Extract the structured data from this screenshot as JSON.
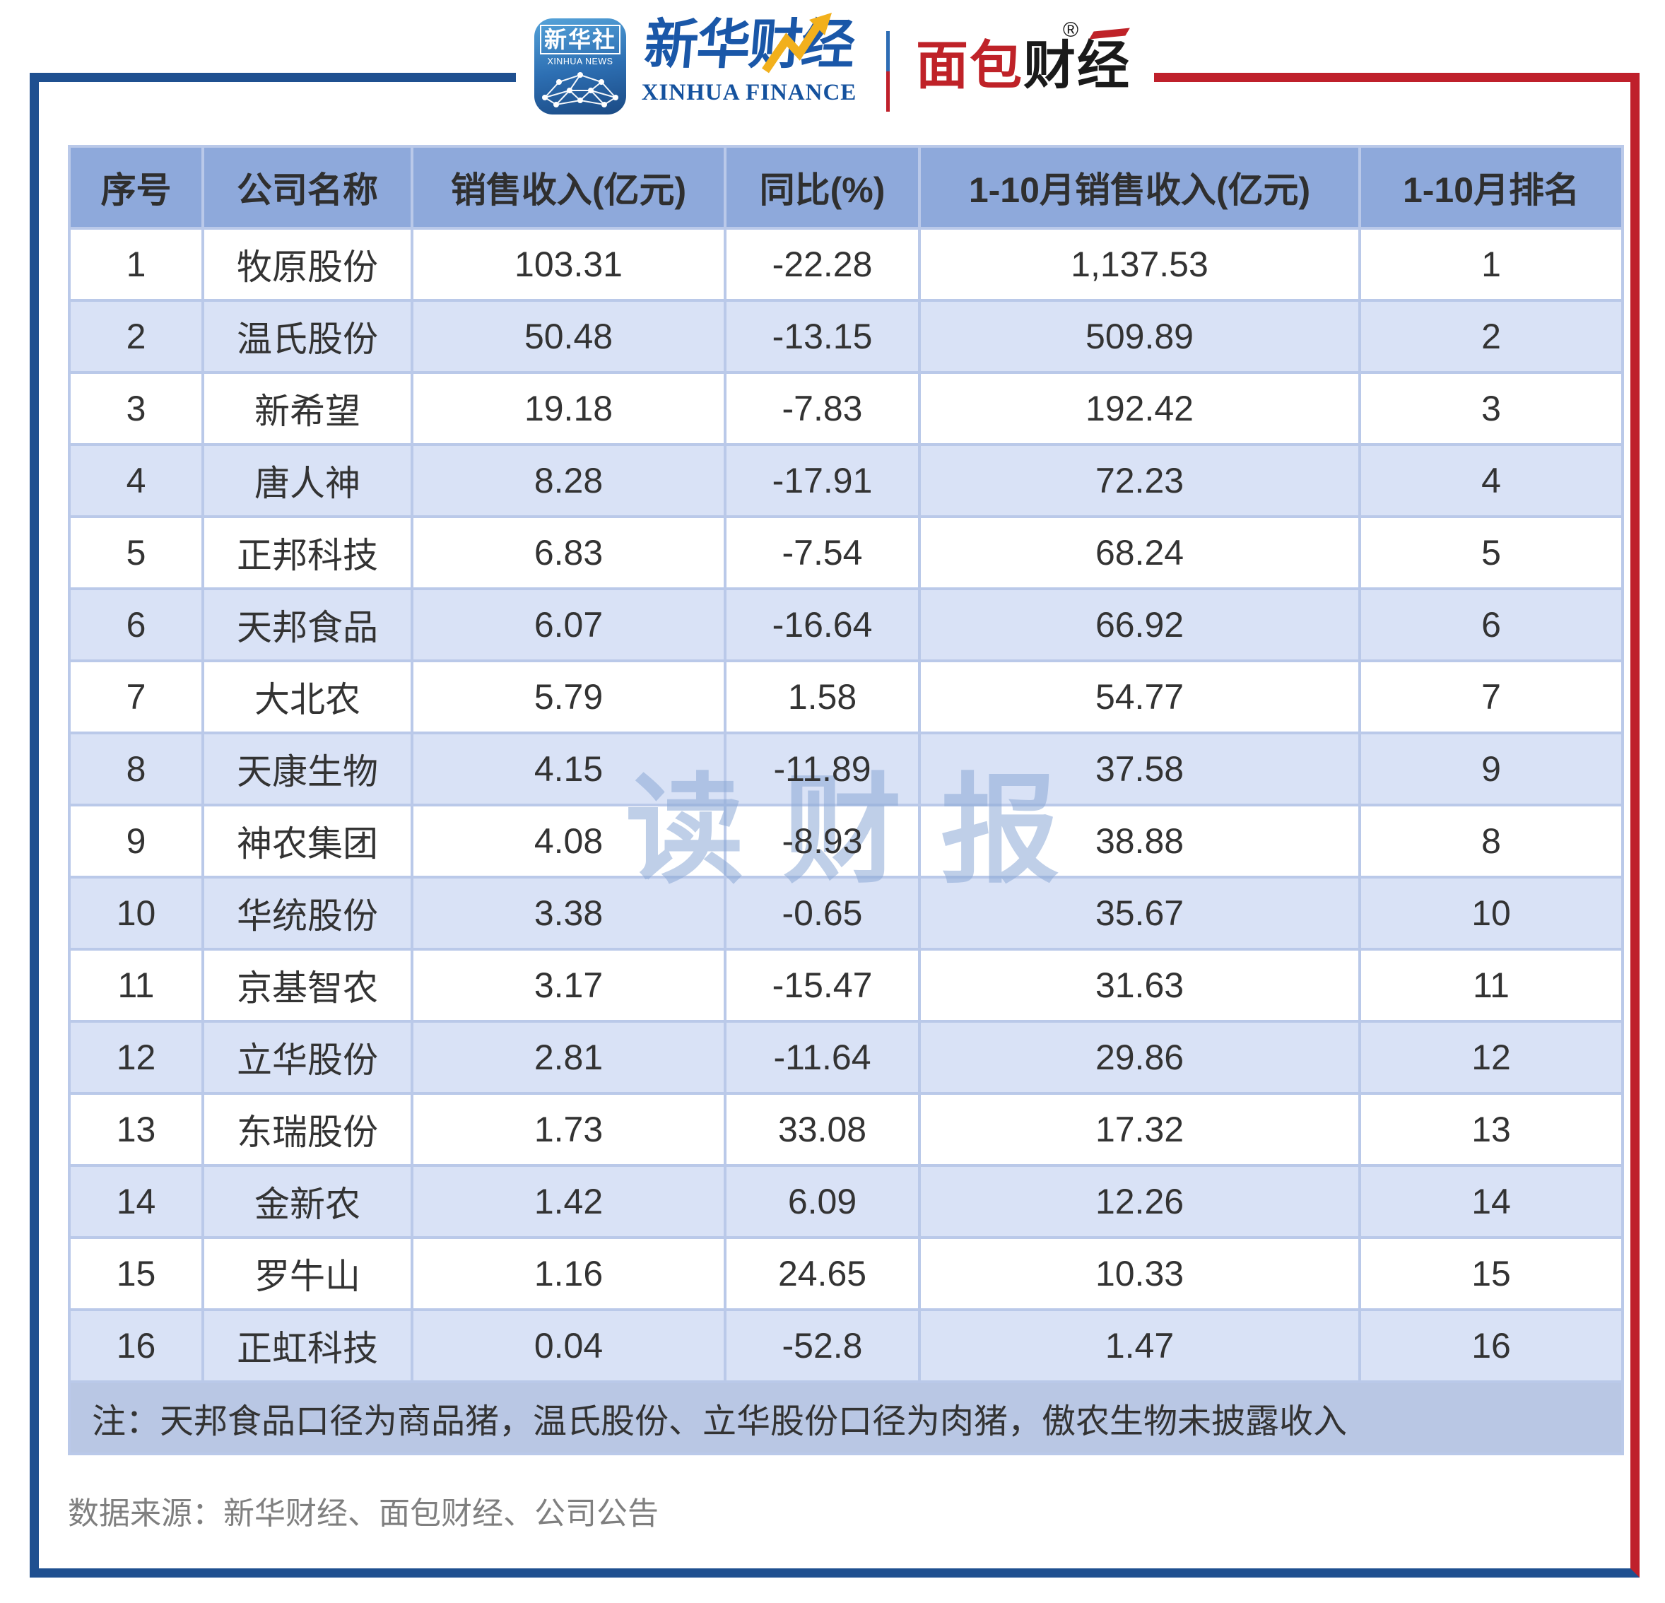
{
  "header": {
    "xinhua_news_icon": {
      "cn": "新华社",
      "en": "XINHUA NEWS"
    },
    "xinhua_finance": {
      "cn": "新华财经",
      "en": "XINHUA FINANCE"
    },
    "mianbao_finance": {
      "red": "面包",
      "black": "财经",
      "reg": "®"
    }
  },
  "chart_data": {
    "type": "table",
    "columns": [
      "序号",
      "公司名称",
      "销售收入(亿元)",
      "同比(%)",
      "1-10月销售收入(亿元)",
      "1-10月排名"
    ],
    "rows": [
      [
        "1",
        "牧原股份",
        "103.31",
        "-22.28",
        "1,137.53",
        "1"
      ],
      [
        "2",
        "温氏股份",
        "50.48",
        "-13.15",
        "509.89",
        "2"
      ],
      [
        "3",
        "新希望",
        "19.18",
        "-7.83",
        "192.42",
        "3"
      ],
      [
        "4",
        "唐人神",
        "8.28",
        "-17.91",
        "72.23",
        "4"
      ],
      [
        "5",
        "正邦科技",
        "6.83",
        "-7.54",
        "68.24",
        "5"
      ],
      [
        "6",
        "天邦食品",
        "6.07",
        "-16.64",
        "66.92",
        "6"
      ],
      [
        "7",
        "大北农",
        "5.79",
        "1.58",
        "54.77",
        "7"
      ],
      [
        "8",
        "天康生物",
        "4.15",
        "-11.89",
        "37.58",
        "9"
      ],
      [
        "9",
        "神农集团",
        "4.08",
        "-8.93",
        "38.88",
        "8"
      ],
      [
        "10",
        "华统股份",
        "3.38",
        "-0.65",
        "35.67",
        "10"
      ],
      [
        "11",
        "京基智农",
        "3.17",
        "-15.47",
        "31.63",
        "11"
      ],
      [
        "12",
        "立华股份",
        "2.81",
        "-11.64",
        "29.86",
        "12"
      ],
      [
        "13",
        "东瑞股份",
        "1.73",
        "33.08",
        "17.32",
        "13"
      ],
      [
        "14",
        "金新农",
        "1.42",
        "6.09",
        "12.26",
        "14"
      ],
      [
        "15",
        "罗牛山",
        "1.16",
        "24.65",
        "10.33",
        "15"
      ],
      [
        "16",
        "正虹科技",
        "0.04",
        "-52.8",
        "1.47",
        "16"
      ]
    ],
    "note": "注：天邦食品口径为商品猪，温氏股份、立华股份口径为肉猪，傲农生物未披露收入",
    "source": "数据来源：新华财经、面包财经、公司公告"
  },
  "watermark": {
    "text": "读财报"
  },
  "colors": {
    "frame_blue": "#1f5090",
    "frame_red": "#bf202b",
    "header_bg": "#8ea9db",
    "row_alt_bg": "#d9e2f6",
    "note_bg": "#b9c7e4",
    "grid": "#bac9e9",
    "cell_text": "#333333",
    "source_text": "#7f7f7f",
    "watermark": "#8ca9d6",
    "xinhua_blue": "#1a57a8",
    "arrow_yellow": "#f2b01c",
    "mianbao_red": "#bf2228"
  }
}
